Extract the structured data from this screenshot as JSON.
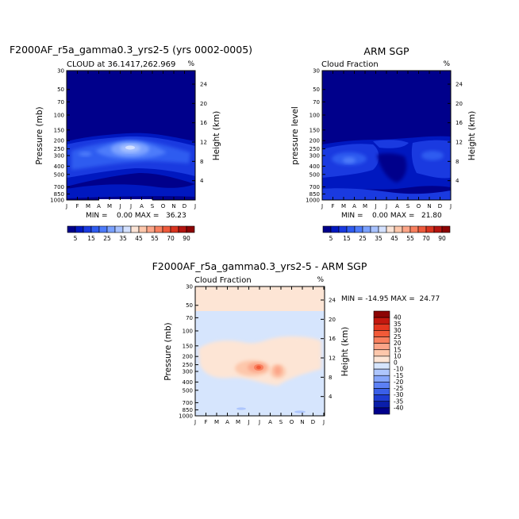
{
  "chart_data": [
    {
      "type": "heatmap",
      "title": "F2000AF_r5a_gamma0.3_yrs2-5 (yrs 0002-0005)",
      "subtitle": "CLOUD at 36.1417,262.969",
      "units": "%",
      "ylabel": "Pressure (mb)",
      "y2label": "Height (km)",
      "stats": "MIN =    0.00 MAX =   36.23",
      "min": 0.0,
      "max": 36.23,
      "features": [
        {
          "month": 6.5,
          "pressure_mb": 250,
          "value": 36.23,
          "note": "core maximum"
        },
        {
          "month": 6.5,
          "pressure_mb": 300,
          "value": 30
        },
        {
          "month": 2.5,
          "pressure_mb": 300,
          "value": 25
        }
      ]
    },
    {
      "type": "heatmap",
      "title": "ARM SGP",
      "subtitle": "Cloud Fraction",
      "units": "%",
      "ylabel": "pressure level",
      "y2label": "Height (km)",
      "stats": "MIN =    0.00 MAX =   21.80",
      "min": 0.0,
      "max": 21.8
    },
    {
      "type": "heatmap",
      "title": "F2000AF_r5a_gamma0.3_yrs2-5 - ARM SGP",
      "subtitle": "Cloud Fraction",
      "units": "%",
      "ylabel": "Pressure (mb)",
      "y2label": "Height (km)",
      "stats": "MIN = -14.95 MAX =  24.77",
      "min": -14.95,
      "max": 24.77
    }
  ],
  "axes": {
    "months": [
      "J",
      "F",
      "M",
      "A",
      "M",
      "J",
      "J",
      "A",
      "S",
      "O",
      "N",
      "D",
      "J"
    ],
    "pressure_ticks": [
      "30",
      "50",
      "70",
      "100",
      "150",
      "200",
      "250",
      "300",
      "400",
      "500",
      "700",
      "850",
      "1000"
    ],
    "pressure_values": [
      30,
      50,
      70,
      100,
      150,
      200,
      250,
      300,
      400,
      500,
      700,
      850,
      1000
    ],
    "height_ticks": [
      "24",
      "20",
      "16",
      "12",
      "8",
      "4"
    ],
    "height_values": [
      24,
      20,
      16,
      12,
      8,
      4
    ]
  },
  "colorbar_abs": {
    "labels": [
      "5",
      "15",
      "25",
      "35",
      "45",
      "55",
      "70",
      "90"
    ],
    "colors": [
      "#00008b",
      "#0018c0",
      "#1a3ae0",
      "#2f5cf0",
      "#4d7bfa",
      "#7aa1ff",
      "#a8c2ff",
      "#d4e1ff",
      "#fbe4d6",
      "#fdc7ab",
      "#fca588",
      "#f8805f",
      "#ee5a3c",
      "#d9341f",
      "#b41510",
      "#8c0404"
    ]
  },
  "colorbar_diff": {
    "labels": [
      "40",
      "35",
      "30",
      "25",
      "20",
      "15",
      "10",
      "0",
      "-10",
      "-15",
      "-20",
      "-25",
      "-30",
      "-35",
      "-40"
    ],
    "colors": [
      "#8c0404",
      "#c4180f",
      "#e4361f",
      "#f25a38",
      "#f9805e",
      "#fca588",
      "#fdc7ab",
      "#fde5d5",
      "#d6e5fd",
      "#aec6fd",
      "#86a6fb",
      "#5c80f5",
      "#3a5fe8",
      "#1e3cd2",
      "#0a1eaa",
      "#00008b"
    ]
  },
  "colors": {
    "background_abs": "#00008b",
    "background_diff": "#d6e5fd",
    "stratosphere_diff": "#fde5d5"
  }
}
